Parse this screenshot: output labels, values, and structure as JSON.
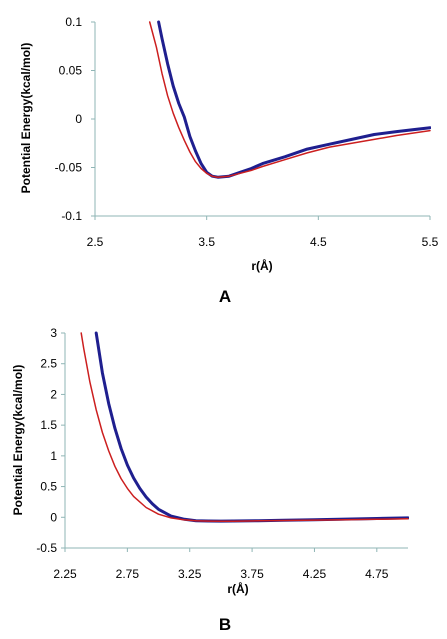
{
  "chart_data": [
    {
      "type": "line",
      "panel_label": "A",
      "xlabel": "r(Å)",
      "ylabel": "Potential Energy(kcal/mol)",
      "xlim": [
        2.5,
        5.5
      ],
      "ylim": [
        -0.1,
        0.1
      ],
      "x_ticks": [
        "2.5",
        "3.5",
        "4.5",
        "5.5"
      ],
      "y_ticks": [
        "-0.1",
        "-0.05",
        "0",
        "0.05",
        "0.1"
      ],
      "grid": false,
      "legend": "none",
      "series": [
        {
          "color": "#1f1f8f",
          "width": 3,
          "x": [
            3.07,
            3.1,
            3.15,
            3.2,
            3.25,
            3.3,
            3.35,
            3.4,
            3.45,
            3.5,
            3.55,
            3.6,
            3.7,
            3.8,
            3.9,
            4.0,
            4.2,
            4.4,
            4.6,
            4.8,
            5.0,
            5.2,
            5.5
          ],
          "y": [
            0.1,
            0.083,
            0.057,
            0.034,
            0.016,
            0.002,
            -0.018,
            -0.033,
            -0.046,
            -0.055,
            -0.059,
            -0.06,
            -0.059,
            -0.055,
            -0.051,
            -0.046,
            -0.039,
            -0.031,
            -0.026,
            -0.021,
            -0.016,
            -0.013,
            -0.009
          ]
        },
        {
          "color": "#cc1f1f",
          "width": 1.5,
          "x": [
            2.99,
            3.05,
            3.1,
            3.15,
            3.2,
            3.25,
            3.3,
            3.35,
            3.4,
            3.45,
            3.5,
            3.55,
            3.6,
            3.7,
            3.8,
            3.9,
            4.0,
            4.2,
            4.4,
            4.6,
            4.8,
            5.0,
            5.2,
            5.5
          ],
          "y": [
            0.1,
            0.074,
            0.047,
            0.024,
            0.006,
            -0.009,
            -0.022,
            -0.034,
            -0.044,
            -0.051,
            -0.056,
            -0.059,
            -0.06,
            -0.059,
            -0.056,
            -0.053,
            -0.049,
            -0.042,
            -0.035,
            -0.029,
            -0.025,
            -0.021,
            -0.017,
            -0.012
          ]
        }
      ]
    },
    {
      "type": "line",
      "panel_label": "B",
      "xlabel": "r(Å)",
      "ylabel": "Potential Energy(kcal/mol)",
      "xlim": [
        2.25,
        5.0
      ],
      "ylim": [
        -0.5,
        3.0
      ],
      "x_ticks": [
        "2.25",
        "2.75",
        "3.25",
        "3.75",
        "4.25",
        "4.75"
      ],
      "y_ticks": [
        "-0.5",
        "0",
        "0.5",
        "1",
        "1.5",
        "2",
        "2.5",
        "3"
      ],
      "grid": false,
      "legend": "none",
      "series": [
        {
          "color": "#1f1f8f",
          "width": 3,
          "x": [
            2.5,
            2.55,
            2.6,
            2.65,
            2.7,
            2.75,
            2.8,
            2.85,
            2.9,
            2.95,
            3.0,
            3.1,
            3.2,
            3.3,
            3.4,
            3.5,
            3.6,
            3.8,
            4.0,
            4.25,
            4.5,
            4.75,
            5.0
          ],
          "y": [
            3.0,
            2.35,
            1.85,
            1.45,
            1.12,
            0.85,
            0.64,
            0.47,
            0.33,
            0.22,
            0.13,
            0.02,
            -0.03,
            -0.055,
            -0.06,
            -0.062,
            -0.06,
            -0.055,
            -0.048,
            -0.04,
            -0.03,
            -0.02,
            -0.01
          ]
        },
        {
          "color": "#cc1f1f",
          "width": 1.5,
          "x": [
            2.38,
            2.4,
            2.45,
            2.5,
            2.55,
            2.6,
            2.65,
            2.7,
            2.75,
            2.8,
            2.9,
            3.0,
            3.1,
            3.2,
            3.3,
            3.4,
            3.5,
            3.6,
            3.8,
            4.0,
            4.25,
            4.5,
            4.75,
            5.0
          ],
          "y": [
            3.0,
            2.75,
            2.2,
            1.75,
            1.38,
            1.08,
            0.83,
            0.63,
            0.47,
            0.34,
            0.16,
            0.05,
            -0.01,
            -0.04,
            -0.055,
            -0.062,
            -0.065,
            -0.063,
            -0.058,
            -0.052,
            -0.046,
            -0.04,
            -0.033,
            -0.025
          ]
        }
      ]
    }
  ]
}
